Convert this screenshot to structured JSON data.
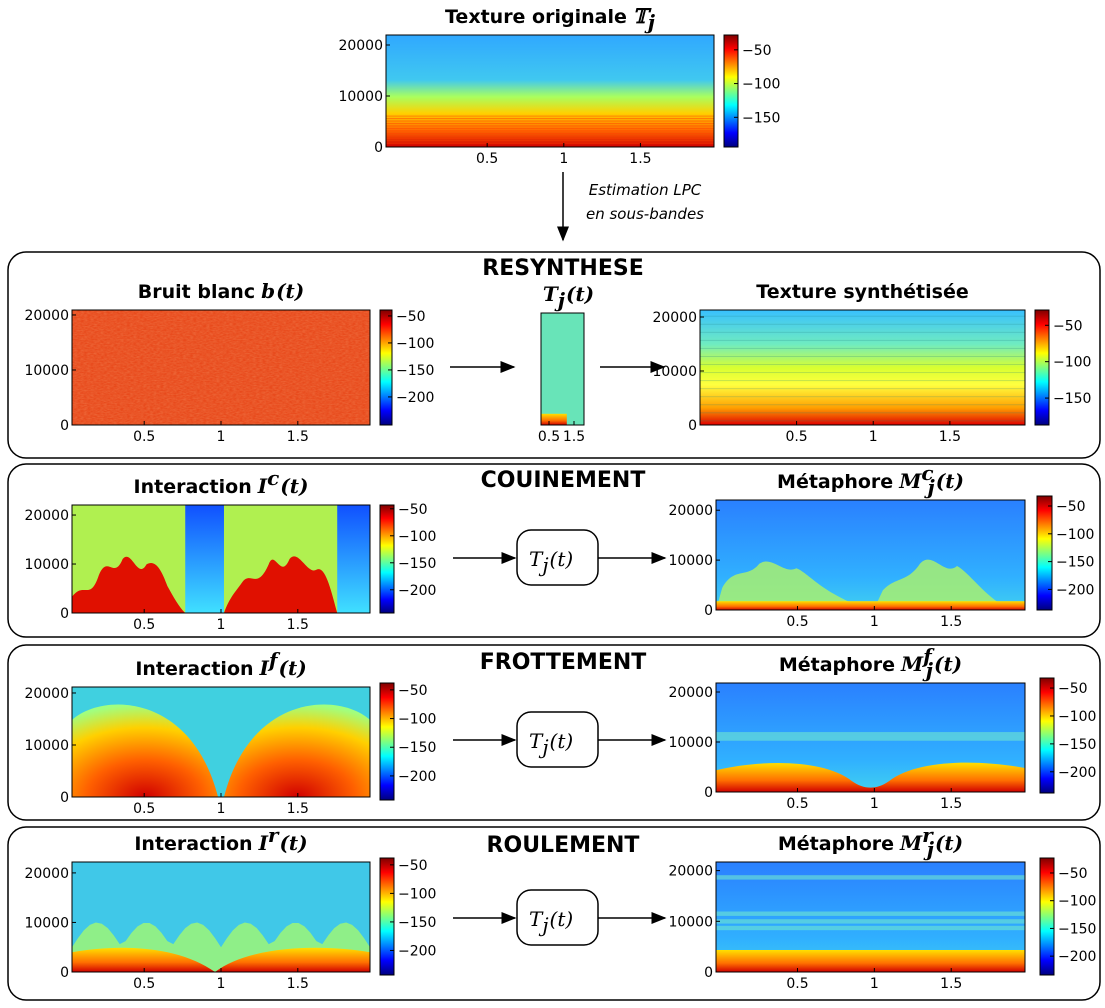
{
  "sections": [
    "RESYNTHESE",
    "COUINEMENT",
    "FROTTEMENT",
    "ROULEMENT"
  ],
  "annotation": [
    "Estimation LPC",
    "en sous-bandes"
  ],
  "filter_label": {
    "base": "T",
    "sub": "j",
    "arg": "(t)"
  },
  "plots": [
    {
      "title": "Texture originale",
      "math": {
        "base": "𝕋",
        "sub": "j"
      },
      "xlim": [
        -0.16,
        1.98
      ],
      "xticks": [
        0.5,
        1,
        1.5
      ],
      "ylim": [
        0,
        21960
      ],
      "yticks": [
        0,
        10000,
        20000
      ],
      "clim": [
        -194,
        -28
      ],
      "cticks": [
        {
          "value": -50,
          "label": "−50"
        },
        {
          "value": -100,
          "label": "−100"
        },
        {
          "value": -150,
          "label": "−150"
        }
      ]
    },
    {
      "title": "Bruit blanc",
      "math": {
        "base": "b",
        "arg": "(t)"
      },
      "xlim": [
        0.03,
        1.97
      ],
      "xticks": [
        0.5,
        1,
        1.5
      ],
      "ylim": [
        0,
        20900
      ],
      "yticks": [
        0,
        10000,
        20000
      ],
      "clim": [
        -252,
        -39
      ],
      "cticks": [
        {
          "value": -50,
          "label": "−50"
        },
        {
          "value": -100,
          "label": "−100"
        },
        {
          "value": -150,
          "label": "−150"
        },
        {
          "value": -200,
          "label": "−200"
        }
      ]
    },
    {
      "math": {
        "base": "T",
        "sub": "j",
        "arg": "(t)"
      },
      "xlim": [
        0.18,
        1.9
      ],
      "xticks": [
        0.5,
        1.5
      ]
    },
    {
      "title": "Texture synthétisée",
      "xlim": [
        -0.13,
        1.99
      ],
      "xticks": [
        0.5,
        1,
        1.5
      ],
      "ylim": [
        0,
        21300
      ],
      "yticks": [
        0,
        10000,
        20000
      ],
      "clim": [
        -187,
        -29
      ],
      "cticks": [
        {
          "value": -50,
          "label": "−50"
        },
        {
          "value": -100,
          "label": "−100"
        },
        {
          "value": -150,
          "label": "−150"
        }
      ]
    },
    {
      "title": "Interaction",
      "math": {
        "base": "I",
        "sup": "c",
        "arg": "(t)"
      },
      "xlim": [
        0.03,
        1.97
      ],
      "xticks": [
        0.5,
        1,
        1.5
      ],
      "ylim": [
        0,
        22050
      ],
      "yticks": [
        0,
        10000,
        20000
      ],
      "clim": [
        -243,
        -43
      ],
      "cticks": [
        {
          "value": -50,
          "label": "−50"
        },
        {
          "value": -100,
          "label": "−100"
        },
        {
          "value": -150,
          "label": "−150"
        },
        {
          "value": -200,
          "label": "−200"
        }
      ]
    },
    {
      "title": "Métaphore",
      "math": {
        "base": "M",
        "sup": "c",
        "sub": "j",
        "arg": "(t)"
      },
      "xlim": [
        -0.03,
        1.98
      ],
      "xticks": [
        0.5,
        1,
        1.5
      ],
      "ylim": [
        0,
        22050
      ],
      "yticks": [
        0,
        10000,
        20000
      ],
      "clim": [
        -237,
        -32
      ],
      "cticks": [
        {
          "value": -50,
          "label": "−50"
        },
        {
          "value": -100,
          "label": "−100"
        },
        {
          "value": -150,
          "label": "−150"
        },
        {
          "value": -200,
          "label": "−200"
        }
      ]
    },
    {
      "title": "Interaction",
      "math": {
        "base": "I",
        "sup": "f",
        "arg": "(t)"
      },
      "xlim": [
        0.03,
        1.97
      ],
      "xticks": [
        0.5,
        1,
        1.5
      ],
      "ylim": [
        0,
        21150
      ],
      "yticks": [
        0,
        10000,
        20000
      ],
      "clim": [
        -242,
        -38
      ],
      "cticks": [
        {
          "value": -50,
          "label": "−50"
        },
        {
          "value": -100,
          "label": "−100"
        },
        {
          "value": -150,
          "label": "−150"
        },
        {
          "value": -200,
          "label": "−200"
        }
      ]
    },
    {
      "title": "Métaphore",
      "math": {
        "base": "M",
        "sup": "f",
        "sub": "j",
        "arg": "(t)"
      },
      "xlim": [
        -0.03,
        1.98
      ],
      "xticks": [
        0.5,
        1,
        1.5
      ],
      "ylim": [
        0,
        21800
      ],
      "yticks": [
        0,
        10000,
        20000
      ],
      "clim": [
        -238,
        -32
      ],
      "cticks": [
        {
          "value": -50,
          "label": "−50"
        },
        {
          "value": -100,
          "label": "−100"
        },
        {
          "value": -150,
          "label": "−150"
        },
        {
          "value": -200,
          "label": "−200"
        }
      ]
    },
    {
      "title": "Interaction",
      "math": {
        "base": "I",
        "sup": "r",
        "arg": "(t)"
      },
      "xlim": [
        0.03,
        1.97
      ],
      "xticks": [
        0.5,
        1,
        1.5
      ],
      "ylim": [
        0,
        22200
      ],
      "yticks": [
        0,
        10000,
        20000
      ],
      "clim": [
        -243,
        -38
      ],
      "cticks": [
        {
          "value": -50,
          "label": "−50"
        },
        {
          "value": -100,
          "label": "−100"
        },
        {
          "value": -150,
          "label": "−150"
        },
        {
          "value": -200,
          "label": "−200"
        }
      ]
    },
    {
      "title": "Métaphore",
      "math": {
        "base": "M",
        "sup": "r",
        "sub": "j",
        "arg": "(t)"
      },
      "xlim": [
        -0.03,
        1.98
      ],
      "xticks": [
        0.5,
        1,
        1.5
      ],
      "ylim": [
        0,
        21700
      ],
      "yticks": [
        0,
        10000,
        20000
      ],
      "clim": [
        -234,
        -23
      ],
      "cticks": [
        {
          "value": -50,
          "label": "−50"
        },
        {
          "value": -100,
          "label": "−100"
        },
        {
          "value": -150,
          "label": "−150"
        },
        {
          "value": -200,
          "label": "−200"
        }
      ]
    }
  ]
}
